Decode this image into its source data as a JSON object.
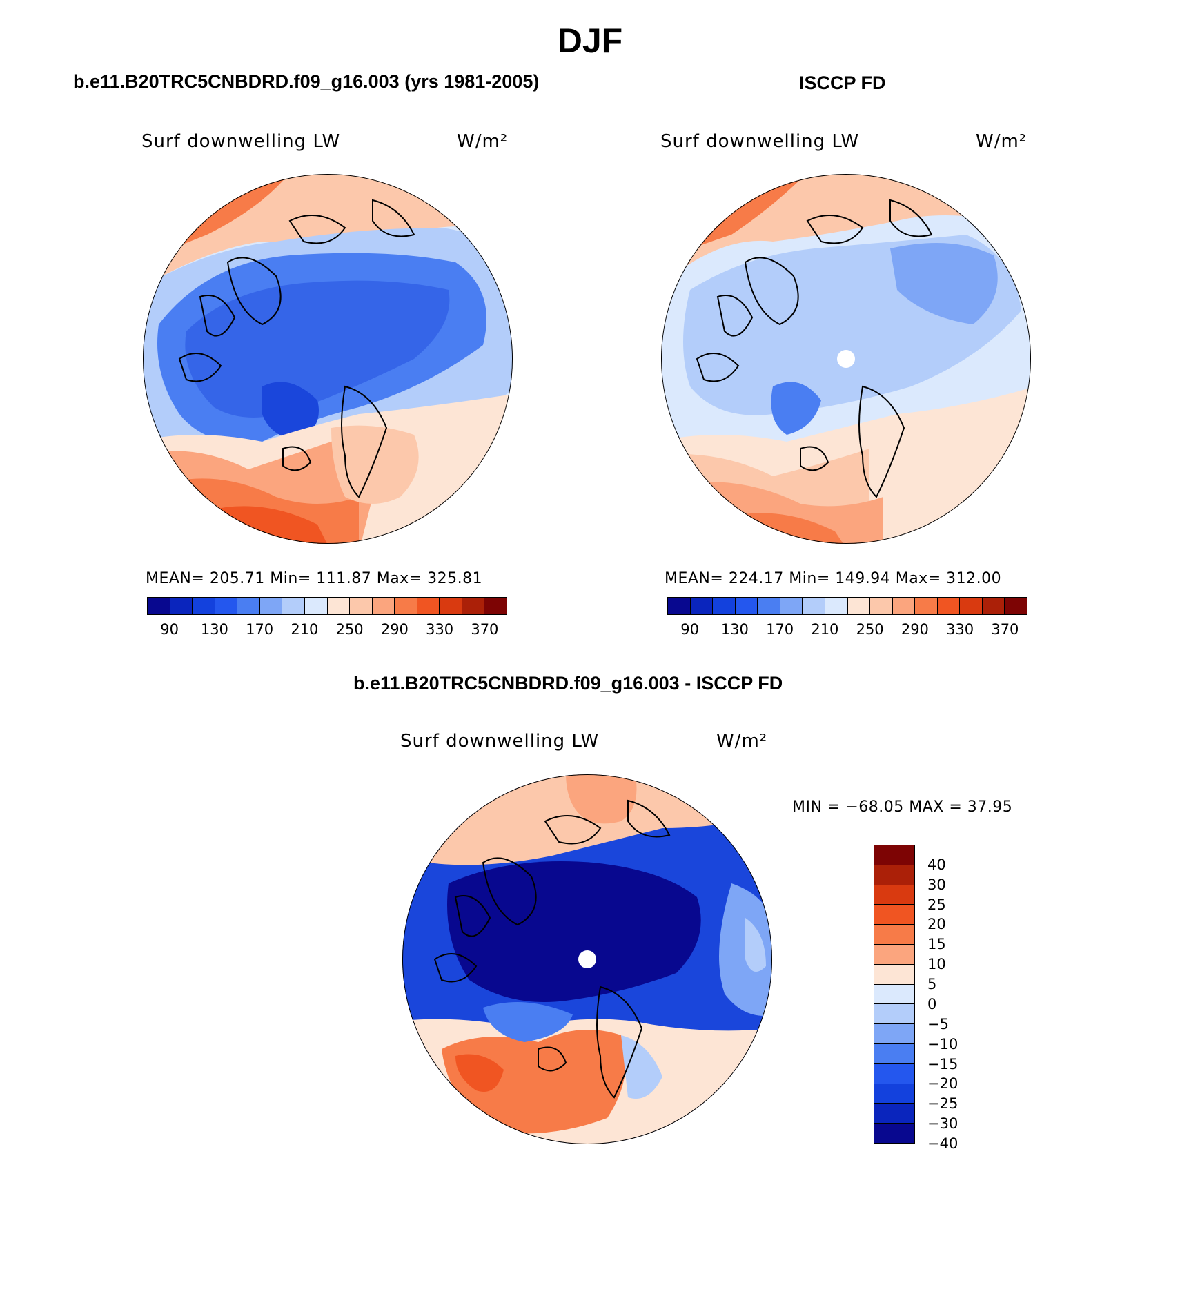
{
  "main_title": "DJF",
  "panels": {
    "model": {
      "title": "b.e11.B20TRC5CNBDRD.f09_g16.003 (yrs 1981-2005)",
      "variable": "Surf downwelling LW",
      "units": "W/m²",
      "stats": "MEAN= 205.71   Min= 111.87   Max= 325.81"
    },
    "obs": {
      "title": "ISCCP FD",
      "variable": "Surf downwelling LW",
      "units": "W/m²",
      "stats": "MEAN= 224.17   Min= 149.94   Max= 312.00"
    },
    "diff": {
      "title": "b.e11.B20TRC5CNBDRD.f09_g16.003 - ISCCP FD",
      "variable": "Surf downwelling LW",
      "units": "W/m²",
      "stats": "MIN = −68.05 MAX =  37.95"
    }
  },
  "colorbar_abs": {
    "colors": [
      "#08088f",
      "#0a25bd",
      "#1341dd",
      "#2457ee",
      "#4a7ef2",
      "#7ea6f6",
      "#b3cdfa",
      "#dbe9fd",
      "#fde5d5",
      "#fcc8ab",
      "#fba57e",
      "#f77b48",
      "#f05522",
      "#d93a10",
      "#ab2008",
      "#7d0404"
    ],
    "labels": [
      "90",
      "130",
      "170",
      "210",
      "250",
      "290",
      "330",
      "370"
    ]
  },
  "colorbar_diff": {
    "colors": [
      "#7d0404",
      "#ab2008",
      "#d93a10",
      "#f05522",
      "#f77b48",
      "#fba57e",
      "#fde5d5",
      "#dbe9fd",
      "#b3cdfa",
      "#7ea6f6",
      "#4a7ef2",
      "#2457ee",
      "#1341dd",
      "#0a25bd",
      "#08088f"
    ],
    "labels": [
      "40",
      "30",
      "25",
      "20",
      "15",
      "10",
      "5",
      "0",
      "−5",
      "−10",
      "−15",
      "−20",
      "−25",
      "−30",
      "−40"
    ]
  },
  "map_colors": {
    "deep_blue": "#0a1fa8",
    "blue": "#1a46db",
    "mid_blue": "#3565e8",
    "light_blue": "#7ea6f6",
    "pale_blue": "#b3cdfa",
    "ice_blue": "#dbe9fd",
    "peach": "#fde5d5",
    "salmon": "#fba57e",
    "orange": "#f77b48",
    "red_orange": "#f05522"
  }
}
